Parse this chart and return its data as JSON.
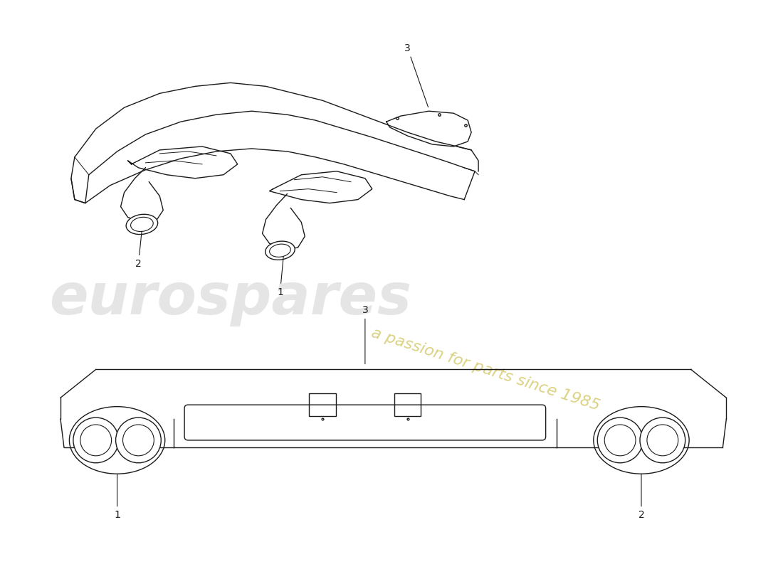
{
  "background_color": "#ffffff",
  "line_color": "#1a1a1a",
  "watermark_text1": "eurospares",
  "watermark_text2": "a passion for parts since 1985",
  "watermark_color1": "#cccccc",
  "watermark_color2": "#c8b840",
  "figsize": [
    11.0,
    8.0
  ],
  "dpi": 100
}
